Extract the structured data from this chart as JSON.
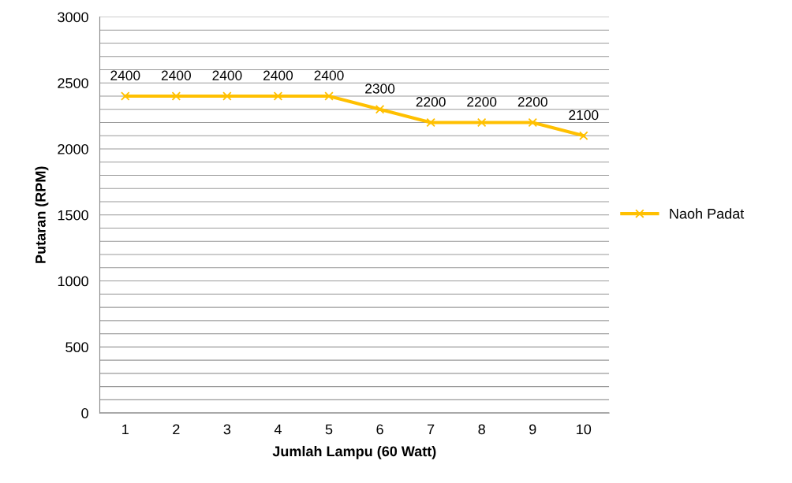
{
  "chart_data": {
    "type": "line",
    "xlabel": "Jumlah Lampu (60 Watt)",
    "ylabel": "Putaran (RPM)",
    "categories": [
      "1",
      "2",
      "3",
      "4",
      "5",
      "6",
      "7",
      "8",
      "9",
      "10"
    ],
    "series": [
      {
        "name": "Naoh Padat",
        "color": "#ffc000",
        "values": [
          2400,
          2400,
          2400,
          2400,
          2400,
          2300,
          2200,
          2200,
          2200,
          2100
        ]
      }
    ],
    "ylim": [
      0,
      3000
    ],
    "yticks": [
      0,
      {
        "value": 100,
        "label": null
      },
      {
        "value": 200,
        "label": null
      },
      {
        "value": 300,
        "label": null
      },
      {
        "value": 400,
        "label": null
      },
      500,
      {
        "value": 600,
        "label": null
      },
      {
        "value": 700,
        "label": null
      },
      {
        "value": 800,
        "label": null
      },
      {
        "value": 900,
        "label": null
      },
      1000,
      {
        "value": 1100,
        "label": null
      },
      {
        "value": 1200,
        "label": null
      },
      {
        "value": 1300,
        "label": null
      },
      {
        "value": 1400,
        "label": null
      },
      1500,
      {
        "value": 1600,
        "label": null
      },
      {
        "value": 1700,
        "label": null
      },
      {
        "value": 1800,
        "label": null
      },
      {
        "value": 1900,
        "label": null
      },
      2000,
      {
        "value": 2100,
        "label": null
      },
      {
        "value": 2200,
        "label": null
      },
      {
        "value": 2300,
        "label": null
      },
      {
        "value": 2400,
        "label": null
      },
      2500,
      {
        "value": 2600,
        "label": null
      },
      {
        "value": 2700,
        "label": null
      },
      {
        "value": 2800,
        "label": null
      },
      {
        "value": 2900,
        "label": null
      },
      3000
    ],
    "grid": "y",
    "legend": "right",
    "marker": "cross",
    "line_style": "solid",
    "data_labels": true
  }
}
